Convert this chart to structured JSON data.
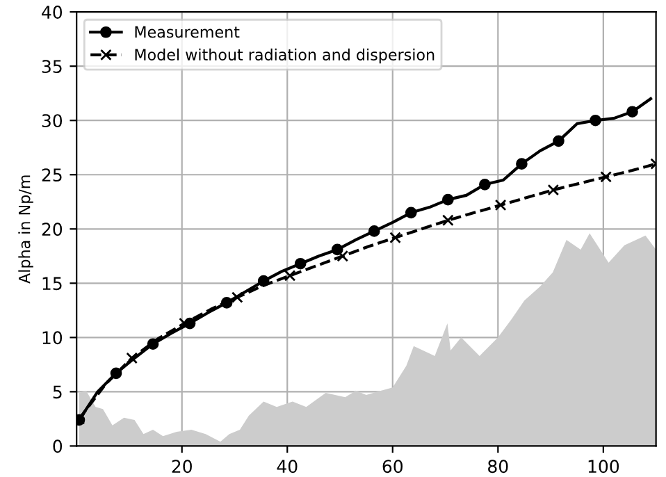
{
  "chart_data": {
    "type": "line",
    "ylabel": "Alpha in Np/m",
    "xlim": [
      0,
      110
    ],
    "ylim": [
      0,
      40
    ],
    "xticks": [
      20,
      40,
      60,
      80,
      100
    ],
    "yticks": [
      0,
      5,
      10,
      15,
      20,
      25,
      30,
      35,
      40
    ],
    "grid": true,
    "legend": "top left",
    "series": [
      {
        "type": "area",
        "color": "#cccccc",
        "x": [
          0.5,
          1.8,
          3.6,
          5,
          6.8,
          9,
          11,
          12.7,
          14.5,
          16.4,
          19,
          21.8,
          24.5,
          27.3,
          29,
          31,
          32.7,
          35.5,
          38,
          41,
          43.6,
          47.3,
          51,
          53,
          55,
          57,
          60,
          62.6,
          64,
          68,
          70.4,
          71,
          73,
          76.5,
          80,
          82.6,
          85,
          88,
          90.4,
          93,
          95.7,
          97.4,
          101,
          104,
          108,
          110
        ],
        "values": [
          4.9,
          5.1,
          3.6,
          3.4,
          1.9,
          2.6,
          2.4,
          1.1,
          1.5,
          0.9,
          1.3,
          1.5,
          1.1,
          0.4,
          1.1,
          1.5,
          2.8,
          4.1,
          3.6,
          4.1,
          3.6,
          4.9,
          4.5,
          5.1,
          4.7,
          5.0,
          5.4,
          7.4,
          9.2,
          8.3,
          11.3,
          8.8,
          10.0,
          8.3,
          10.0,
          11.7,
          13.4,
          14.7,
          16.0,
          19.0,
          18.1,
          19.6,
          16.9,
          18.5,
          19.4,
          18.1
        ]
      },
      {
        "name": "Measurement",
        "color": "#000000",
        "marker": "circle",
        "line_style": "solid",
        "x": [
          0.5,
          4,
          7.5,
          11,
          14.5,
          18,
          21.5,
          25,
          28.5,
          32,
          35.5,
          39,
          42.5,
          46,
          49.5,
          53,
          56.5,
          60,
          63.5,
          67,
          70.5,
          74,
          77.5,
          81,
          84.5,
          88,
          91.5,
          95,
          98.5,
          102,
          105.5,
          109
        ],
        "values": [
          2.4,
          5.0,
          6.7,
          8.1,
          9.4,
          10.4,
          11.3,
          12.3,
          13.2,
          14.2,
          15.2,
          16.1,
          16.8,
          17.5,
          18.1,
          19.0,
          19.8,
          20.6,
          21.5,
          22.0,
          22.7,
          23.1,
          24.1,
          24.5,
          26.0,
          27.2,
          28.1,
          29.7,
          30.0,
          30.2,
          30.8,
          32.0
        ]
      },
      {
        "name": "Model without radiation and dispersion",
        "color": "#000000",
        "marker": "cross",
        "line_style": "dashed",
        "x": [
          0.5,
          5.5,
          10.5,
          15.5,
          20.5,
          25.5,
          30.5,
          35.5,
          40.5,
          45.5,
          50.5,
          55.5,
          60.5,
          65.5,
          70.5,
          75.5,
          80.5,
          85.5,
          90.5,
          95.5,
          100.5,
          105.5,
          110
        ],
        "values": [
          2.5,
          5.7,
          8.1,
          9.9,
          11.3,
          12.6,
          13.7,
          14.8,
          15.7,
          16.6,
          17.5,
          18.4,
          19.2,
          20.0,
          20.8,
          21.5,
          22.2,
          22.9,
          23.6,
          24.2,
          24.8,
          25.4,
          26.0
        ]
      }
    ]
  }
}
